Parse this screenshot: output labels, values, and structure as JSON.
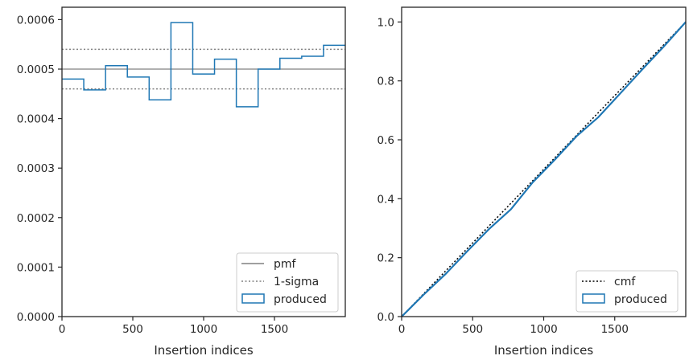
{
  "colors": {
    "produced": "#1f77b4",
    "pmf": "#808080",
    "sigma": "#808080",
    "cmf": "#000000",
    "axes": "#262626",
    "legend_border": "#cccccc"
  },
  "chart_data": [
    {
      "type": "histogram",
      "xlabel": "Insertion indices",
      "ylabel": "",
      "xlim": [
        0,
        2000
      ],
      "ylim": [
        0,
        0.000625
      ],
      "xticks": [
        0,
        500,
        1000,
        1500
      ],
      "xtick_labels": [
        "0",
        "500",
        "1000",
        "1500"
      ],
      "yticks": [
        0,
        0.0001,
        0.0002,
        0.0003,
        0.0004,
        0.0005,
        0.0006
      ],
      "ytick_labels": [
        "0.0000",
        "0.0001",
        "0.0002",
        "0.0003",
        "0.0004",
        "0.0005",
        "0.0006"
      ],
      "pmf": 0.0005,
      "sigma_upper": 0.00054,
      "sigma_lower": 0.00046,
      "bin_edges": [
        0,
        153.8,
        307.7,
        461.5,
        615.4,
        769.2,
        923.1,
        1076.9,
        1230.8,
        1384.6,
        1538.5,
        1692.3,
        1846.2,
        2000
      ],
      "values": [
        0.00048,
        0.000458,
        0.000507,
        0.000484,
        0.000438,
        0.000594,
        0.00049,
        0.00052,
        0.000424,
        0.0005,
        0.000522,
        0.000526,
        0.000548
      ],
      "legend": {
        "position": "bottom-right",
        "entries": [
          {
            "label": "pmf",
            "style": "solid-gray"
          },
          {
            "label": "1-sigma",
            "style": "dotted-gray"
          },
          {
            "label": "produced",
            "style": "box-blue"
          }
        ]
      }
    },
    {
      "type": "line",
      "xlabel": "Insertion indices",
      "ylabel": "",
      "xlim": [
        0,
        2000
      ],
      "ylim": [
        0,
        1.05
      ],
      "xticks": [
        0,
        500,
        1000,
        1500
      ],
      "xtick_labels": [
        "0",
        "500",
        "1000",
        "1500"
      ],
      "yticks": [
        0,
        0.2,
        0.4,
        0.6,
        0.8,
        1.0
      ],
      "ytick_labels": [
        "0.0",
        "0.2",
        "0.4",
        "0.6",
        "0.8",
        "1.0"
      ],
      "cmf": {
        "x": [
          0,
          2000
        ],
        "y": [
          0,
          1.0
        ]
      },
      "produced": {
        "x": [
          0,
          154,
          308,
          462,
          615,
          769,
          923,
          1077,
          1231,
          1385,
          1538,
          1692,
          1846,
          2000
        ],
        "y": [
          0,
          0.074,
          0.144,
          0.222,
          0.297,
          0.364,
          0.456,
          0.532,
          0.612,
          0.677,
          0.757,
          0.838,
          0.917,
          1.0
        ]
      },
      "legend": {
        "position": "bottom-right",
        "entries": [
          {
            "label": "cmf",
            "style": "dotted-black"
          },
          {
            "label": "produced",
            "style": "box-blue"
          }
        ]
      }
    }
  ]
}
